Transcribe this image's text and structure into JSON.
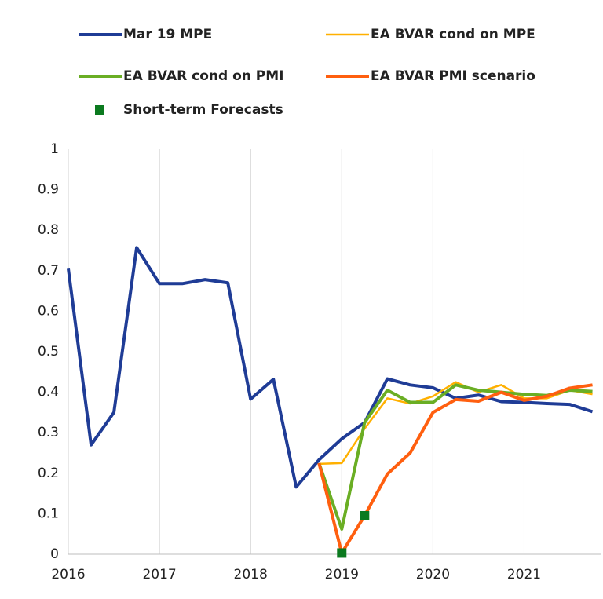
{
  "chart_data": {
    "type": "line",
    "x": [
      2016,
      2016.25,
      2016.5,
      2016.75,
      2017,
      2017.25,
      2017.5,
      2017.75,
      2018,
      2018.25,
      2018.5,
      2018.75,
      2019,
      2019.25,
      2019.5,
      2019.75,
      2020,
      2020.25,
      2020.5,
      2020.75,
      2021,
      2021.25,
      2021.5,
      2021.75
    ],
    "series": [
      {
        "name": "Mar 19 MPE",
        "color": "#1f3c96",
        "values": [
          0.705,
          0.27,
          0.35,
          0.757,
          0.668,
          0.668,
          0.678,
          0.67,
          0.383,
          0.432,
          0.166,
          0.233,
          0.285,
          0.325,
          0.433,
          0.418,
          0.411,
          0.385,
          0.393,
          0.377,
          0.375,
          0.372,
          0.37,
          0.352
        ]
      },
      {
        "name": "EA BVAR cond on MPE",
        "color": "#ffb000",
        "values": [
          null,
          null,
          null,
          null,
          null,
          null,
          null,
          null,
          null,
          null,
          null,
          0.223,
          0.225,
          0.31,
          0.385,
          0.372,
          0.39,
          0.425,
          0.4,
          0.418,
          0.385,
          0.385,
          0.405,
          0.395
        ]
      },
      {
        "name": "EA BVAR cond on PMI",
        "color": "#6aae24",
        "values": [
          null,
          null,
          null,
          null,
          null,
          null,
          null,
          null,
          null,
          null,
          null,
          0.225,
          0.062,
          0.325,
          0.405,
          0.375,
          0.375,
          0.418,
          0.405,
          0.4,
          0.395,
          0.392,
          0.405,
          0.402
        ]
      },
      {
        "name": "EA BVAR PMI scenario",
        "color": "#ff5f0f",
        "values": [
          null,
          null,
          null,
          null,
          null,
          null,
          null,
          null,
          null,
          null,
          null,
          0.225,
          0.003,
          0.095,
          0.198,
          0.25,
          0.35,
          0.382,
          0.378,
          0.4,
          0.38,
          0.39,
          0.41,
          0.418
        ]
      },
      {
        "name": "Short-term Forecasts",
        "color": "#0b7a1f",
        "marker": "square",
        "values": [
          null,
          null,
          null,
          null,
          null,
          null,
          null,
          null,
          null,
          null,
          null,
          null,
          0.003,
          0.095,
          null,
          null,
          null,
          null,
          null,
          null,
          null,
          null,
          null,
          null
        ]
      }
    ],
    "xlim": [
      2016,
      2021.84
    ],
    "xticks": [
      2016,
      2017,
      2018,
      2019,
      2020,
      2021
    ],
    "ylim": [
      0,
      1
    ],
    "yticks": [
      0,
      0.1,
      0.2,
      0.3,
      0.4,
      0.5,
      0.6,
      0.7,
      0.8,
      0.9,
      1
    ],
    "grid": "x"
  }
}
